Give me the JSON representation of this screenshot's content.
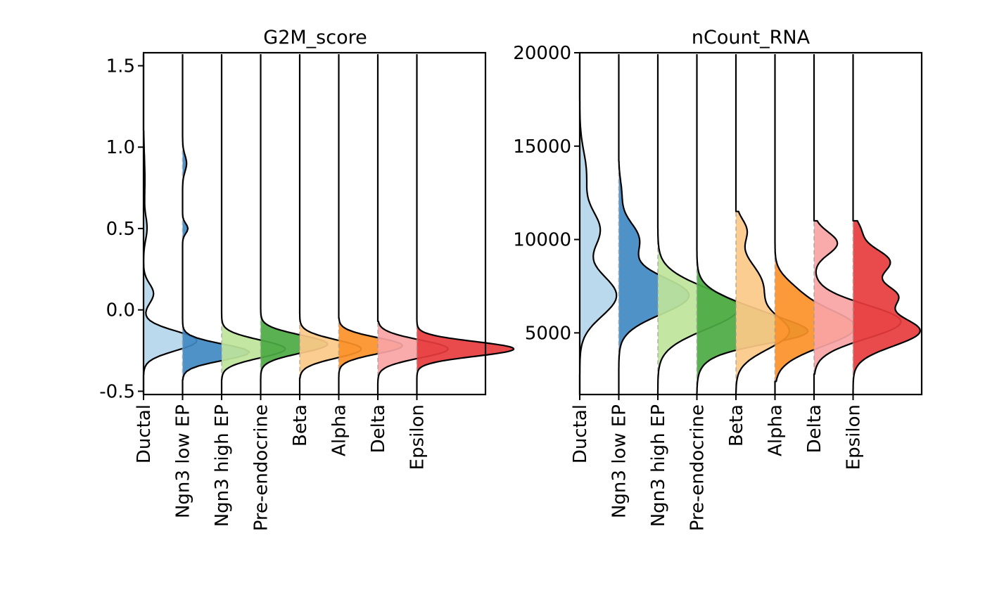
{
  "chart_data": [
    {
      "type": "violin",
      "style": "half-violin ridgeline",
      "title": "G2M_score",
      "xlabel": "",
      "ylabel": "",
      "categories": [
        "Ductal",
        "Ngn3 low EP",
        "Ngn3 high EP",
        "Pre-endocrine",
        "Beta",
        "Alpha",
        "Delta",
        "Epsilon"
      ],
      "colors": [
        "#b5d6ea",
        "#4089c2",
        "#bee49b",
        "#4caa42",
        "#fcc987",
        "#fc9129",
        "#f9a4a5",
        "#e73c3d"
      ],
      "ylim": [
        -0.52,
        1.58
      ],
      "yticks": [
        -0.5,
        0.0,
        0.5,
        1.0,
        1.5
      ],
      "ytick_labels": [
        "-0.5",
        "0.0",
        "0.5",
        "1.0",
        "1.5"
      ],
      "distributions": [
        {
          "name": "Ductal",
          "range": [
            -0.4,
            1.1
          ],
          "peaks": [
            {
              "mu": -0.19,
              "sd": 0.06,
              "h": 0.8
            },
            {
              "mu": 0.1,
              "sd": 0.06,
              "h": 0.15
            },
            {
              "mu": 0.5,
              "sd": 0.07,
              "h": 0.05
            },
            {
              "mu": 0.8,
              "sd": 0.15,
              "h": 0.02
            }
          ]
        },
        {
          "name": "Ngn3 low EP",
          "range": [
            -0.43,
            1.12
          ],
          "peaks": [
            {
              "mu": -0.26,
              "sd": 0.05,
              "h": 1.0
            },
            {
              "mu": 0.5,
              "sd": 0.03,
              "h": 0.08
            },
            {
              "mu": 0.9,
              "sd": 0.05,
              "h": 0.06
            }
          ]
        },
        {
          "name": "Ngn3 high EP",
          "range": [
            -0.43,
            0.02
          ],
          "peaks": [
            {
              "mu": -0.24,
              "sd": 0.055,
              "h": 0.95
            }
          ]
        },
        {
          "name": "Pre-endocrine",
          "range": [
            -0.44,
            0.01
          ],
          "peaks": [
            {
              "mu": -0.21,
              "sd": 0.055,
              "h": 1.0
            }
          ]
        },
        {
          "name": "Beta",
          "range": [
            -0.42,
            0.0
          ],
          "peaks": [
            {
              "mu": -0.24,
              "sd": 0.055,
              "h": 0.92
            }
          ]
        },
        {
          "name": "Alpha",
          "range": [
            -0.45,
            -0.05
          ],
          "peaks": [
            {
              "mu": -0.22,
              "sd": 0.05,
              "h": 0.95
            }
          ]
        },
        {
          "name": "Delta",
          "range": [
            -0.45,
            -0.07
          ],
          "peaks": [
            {
              "mu": -0.24,
              "sd": 0.055,
              "h": 1.05
            }
          ]
        },
        {
          "name": "Epsilon",
          "range": [
            -0.42,
            -0.05
          ],
          "peaks": [
            {
              "mu": -0.24,
              "sd": 0.045,
              "h": 1.45
            }
          ]
        }
      ]
    },
    {
      "type": "violin",
      "style": "half-violin ridgeline",
      "title": "nCount_RNA",
      "xlabel": "",
      "ylabel": "",
      "categories": [
        "Ductal",
        "Ngn3 low EP",
        "Ngn3 high EP",
        "Pre-endocrine",
        "Beta",
        "Alpha",
        "Delta",
        "Epsilon"
      ],
      "colors": [
        "#b5d6ea",
        "#4089c2",
        "#bee49b",
        "#4caa42",
        "#fcc987",
        "#fc9129",
        "#f9a4a5",
        "#e73c3d"
      ],
      "ylim": [
        1700,
        20000
      ],
      "yticks": [
        5000,
        10000,
        15000,
        20000
      ],
      "ytick_labels": [
        "5000",
        "10000",
        "15000",
        "20000"
      ],
      "distributions": [
        {
          "name": "Ductal",
          "range": [
            2400,
            17500
          ],
          "peaks": [
            {
              "mu": 7000,
              "sd": 1100,
              "h": 0.55
            },
            {
              "mu": 10500,
              "sd": 1000,
              "h": 0.3
            },
            {
              "mu": 13500,
              "sd": 1200,
              "h": 0.1
            }
          ]
        },
        {
          "name": "Ngn3 low EP",
          "range": [
            1700,
            14200
          ],
          "peaks": [
            {
              "mu": 7000,
              "sd": 1000,
              "h": 1.05
            },
            {
              "mu": 10000,
              "sd": 900,
              "h": 0.3
            },
            {
              "mu": 12500,
              "sd": 700,
              "h": 0.04
            }
          ]
        },
        {
          "name": "Ngn3 high EP",
          "range": [
            1800,
            11500
          ],
          "peaks": [
            {
              "mu": 6300,
              "sd": 1100,
              "h": 1.2
            }
          ]
        },
        {
          "name": "Pre-endocrine",
          "range": [
            1800,
            10500
          ],
          "peaks": [
            {
              "mu": 5500,
              "sd": 1000,
              "h": 1.2
            },
            {
              "mu": 4900,
              "sd": 500,
              "h": 0.6
            }
          ]
        },
        {
          "name": "Beta",
          "range": [
            1800,
            11500
          ],
          "peaks": [
            {
              "mu": 5000,
              "sd": 900,
              "h": 0.75
            },
            {
              "mu": 7500,
              "sd": 1200,
              "h": 0.4
            },
            {
              "mu": 10500,
              "sd": 600,
              "h": 0.15
            }
          ]
        },
        {
          "name": "Alpha",
          "range": [
            2400,
            9800
          ],
          "peaks": [
            {
              "mu": 5300,
              "sd": 1000,
              "h": 1.2
            },
            {
              "mu": 7300,
              "sd": 700,
              "h": 0.2
            }
          ]
        },
        {
          "name": "Delta",
          "range": [
            2800,
            11000
          ],
          "peaks": [
            {
              "mu": 5600,
              "sd": 900,
              "h": 1.3
            },
            {
              "mu": 9800,
              "sd": 600,
              "h": 0.35
            }
          ]
        },
        {
          "name": "Epsilon",
          "range": [
            2000,
            11000
          ],
          "peaks": [
            {
              "mu": 5100,
              "sd": 800,
              "h": 1.0
            },
            {
              "mu": 7000,
              "sd": 600,
              "h": 0.6
            },
            {
              "mu": 8800,
              "sd": 700,
              "h": 0.55
            },
            {
              "mu": 10500,
              "sd": 500,
              "h": 0.1
            }
          ]
        }
      ]
    }
  ]
}
